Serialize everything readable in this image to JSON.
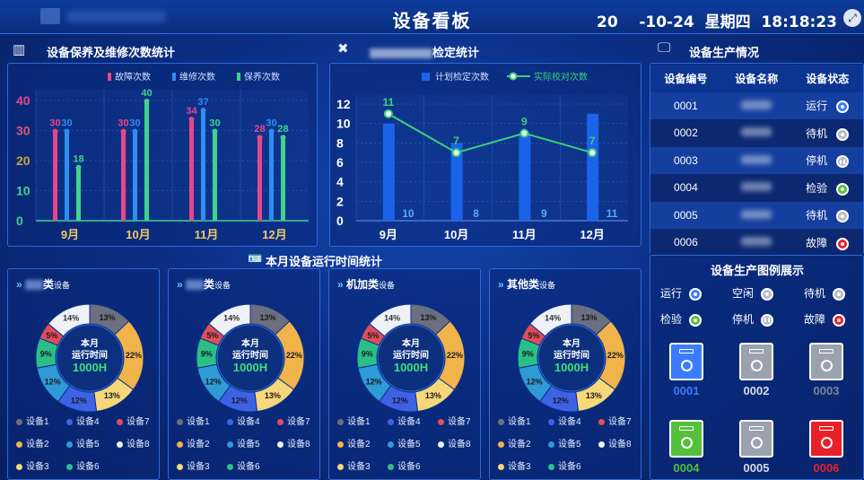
{
  "header": {
    "title": "设备看板",
    "datetime": "20    -10-24  星期四  18:18:23",
    "expand_icon": "expand-icon"
  },
  "colors": {
    "fault": "#e8468a",
    "repair": "#2e8ff0",
    "maint": "#3fd48c",
    "plan": "#1b63e8",
    "actual": "#3ad07a",
    "running": "#3b7cff",
    "idle": "#b7bdc8",
    "standby": "#b7bdc8",
    "test": "#55c03a",
    "stop": "#b7bdc8",
    "breakdown": "#e8202a"
  },
  "maint_panel": {
    "title": "设备保养及维修次数统计",
    "icon": "bar-chart-icon"
  },
  "calib_panel": {
    "title_suffix": "检定统计",
    "icon": "wrench-icon"
  },
  "prod_panel": {
    "title": "设备生产情况",
    "icon": "monitor-icon",
    "headers": [
      "设备编号",
      "设备名称",
      "设备状态"
    ],
    "rows": [
      {
        "id": "0001",
        "status": "运行",
        "state": "running"
      },
      {
        "id": "0002",
        "status": "待机",
        "state": "standby"
      },
      {
        "id": "0003",
        "status": "停机",
        "state": "stop"
      },
      {
        "id": "0004",
        "status": "检验",
        "state": "test"
      },
      {
        "id": "0005",
        "status": "待机",
        "state": "standby"
      },
      {
        "id": "0006",
        "status": "故障",
        "state": "breakdown"
      }
    ]
  },
  "legend_panel": {
    "title": "设备生产图例展示",
    "items": [
      {
        "label": "运行",
        "state": "running"
      },
      {
        "label": "空闲",
        "state": "idle"
      },
      {
        "label": "待机",
        "state": "standby"
      },
      {
        "label": "检验",
        "state": "test"
      },
      {
        "label": "停机",
        "state": "stop"
      },
      {
        "label": "故障",
        "state": "breakdown"
      }
    ],
    "machines": [
      {
        "id": "0001",
        "state": "running"
      },
      {
        "id": "0002",
        "state": "idle"
      },
      {
        "id": "0003",
        "state": "stop"
      },
      {
        "id": "0004",
        "state": "test"
      },
      {
        "id": "0005",
        "state": "idle"
      },
      {
        "id": "0006",
        "state": "breakdown"
      }
    ]
  },
  "runtime_section": {
    "title": "本月设备运行时间统计",
    "icon": "id-card-icon",
    "cards": [
      {
        "name_suffix": "类",
        "small": "设备",
        "blurred": true
      },
      {
        "name_suffix": "类",
        "small": "设备",
        "blurred": true
      },
      {
        "name_suffix": "机加类",
        "small": "设备",
        "blurred": false
      },
      {
        "name_suffix": "其他类",
        "small": "设备",
        "blurred": false
      }
    ],
    "donut_center": {
      "line1": "本月",
      "line2": "运行时间",
      "value": "1000H"
    },
    "device_legend": [
      "设备1",
      "设备4",
      "设备7",
      "设备2",
      "设备5",
      "设备8",
      "设备3",
      "设备6"
    ]
  },
  "chart_data": [
    {
      "type": "bar",
      "title": "设备保养及维修次数统计",
      "categories": [
        "9月",
        "10月",
        "11月",
        "12月"
      ],
      "series": [
        {
          "name": "故障次数",
          "values": [
            30,
            30,
            34,
            28
          ]
        },
        {
          "name": "维修次数",
          "values": [
            30,
            30,
            37,
            30
          ]
        },
        {
          "name": "保养次数",
          "values": [
            18,
            40,
            30,
            28
          ]
        }
      ],
      "ylim": [
        0,
        40
      ],
      "yticks": [
        0,
        10,
        20,
        30,
        40
      ]
    },
    {
      "type": "bar",
      "title": "检定统计",
      "categories": [
        "9月",
        "10月",
        "11月",
        "12月"
      ],
      "series": [
        {
          "name": "计划检定次数",
          "type": "bar",
          "values": [
            10,
            8,
            9,
            11
          ]
        },
        {
          "name": "实际校对次数",
          "type": "line",
          "values": [
            11,
            7,
            9,
            7
          ]
        }
      ],
      "ylim": [
        0,
        12
      ],
      "yticks": [
        0,
        2,
        4,
        6,
        8,
        10,
        12
      ]
    },
    {
      "type": "pie",
      "donut": true,
      "center_text": "本月 运行时间 1000H",
      "slices": [
        {
          "label": "设备1",
          "value": 13
        },
        {
          "label": "设备2",
          "value": 22
        },
        {
          "label": "设备3",
          "value": 13
        },
        {
          "label": "设备4",
          "value": 12
        },
        {
          "label": "设备5",
          "value": 12
        },
        {
          "label": "设备6",
          "value": 9
        },
        {
          "label": "设备7",
          "value": 5
        },
        {
          "label": "设备8",
          "value": 14
        }
      ],
      "colors": [
        "#6b6f7f",
        "#f0b44a",
        "#f6d77a",
        "#3d62e6",
        "#2e9ad6",
        "#2bbf88",
        "#e04e5c",
        "#eef1f6"
      ],
      "note": "Identical chart repeated in 4 cards"
    }
  ]
}
